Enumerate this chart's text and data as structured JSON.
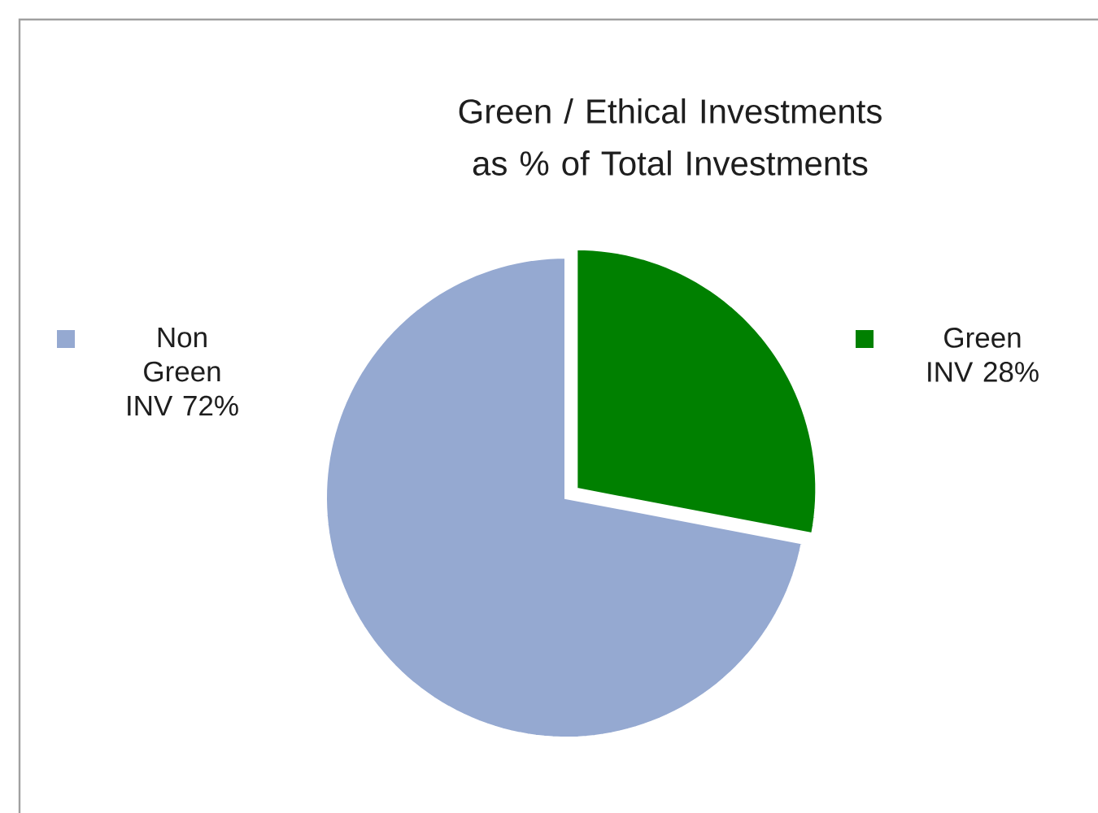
{
  "chart_data": {
    "type": "pie",
    "title": "Green / Ethical Investments as % of Total Investments",
    "categories": [
      "Green INV",
      "Non Green INV"
    ],
    "values": [
      28,
      72
    ],
    "value_labels": [
      "28%",
      "72%"
    ],
    "colors": [
      "#008000",
      "#95a9d1"
    ]
  }
}
